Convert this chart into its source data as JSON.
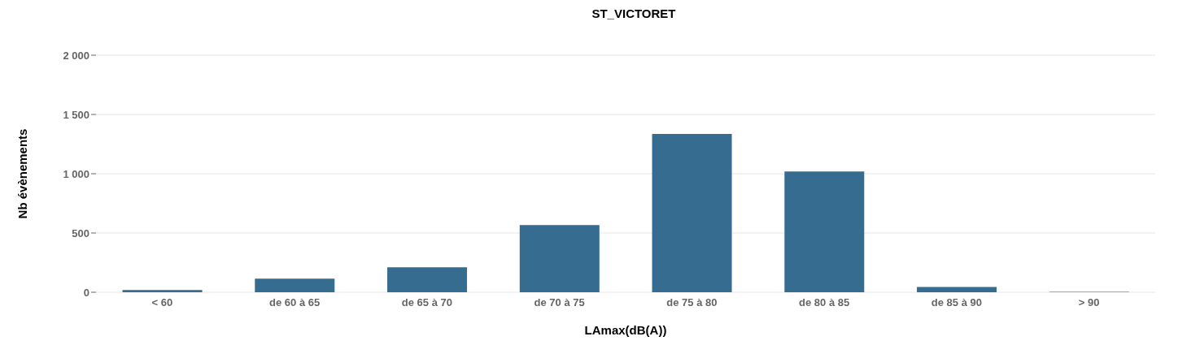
{
  "chart_data": {
    "type": "bar",
    "title": "ST_VICTORET",
    "xlabel": "LAmax(dB(A))",
    "ylabel": "Nb évènements",
    "categories": [
      "< 60",
      "de 60 à 65",
      "de 65 à 70",
      "de 70 à 75",
      "de 75 à 80",
      "de 80 à 85",
      "de 85 à 90",
      "> 90"
    ],
    "values": [
      18,
      114,
      210,
      566,
      1336,
      1018,
      45,
      4
    ],
    "color": "#356c8f",
    "ylim": [
      0,
      2000
    ],
    "yticks": [
      0,
      500,
      {
        "value": 1000,
        "label": "1 000"
      },
      {
        "value": 1500,
        "label": "1 500"
      },
      {
        "value": 2000,
        "label": "2 000"
      }
    ],
    "grid": "y"
  }
}
